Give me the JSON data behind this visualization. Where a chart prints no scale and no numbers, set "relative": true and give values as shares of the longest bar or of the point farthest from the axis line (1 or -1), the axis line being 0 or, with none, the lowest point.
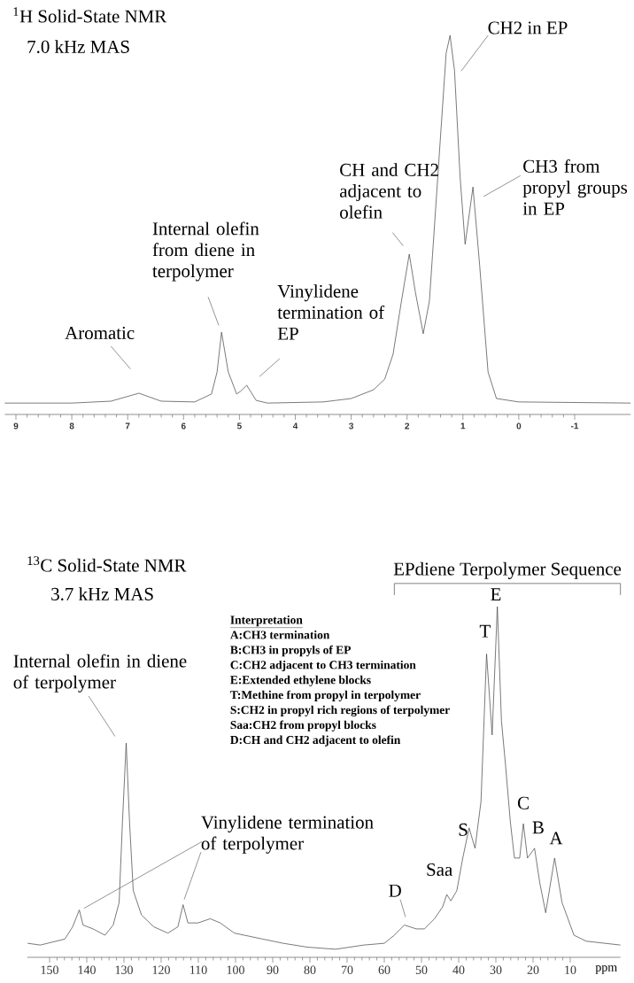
{
  "chart_data": [
    {
      "type": "line",
      "title": "$^{1}$H Solid-State NMR",
      "subtitle": "7.0 kHz MAS",
      "relative": true,
      "tick_labels": "x",
      "color": "#404040",
      "xlim": [
        9.2,
        -2.0
      ],
      "xticks": [
        9,
        8,
        7,
        6,
        5,
        4,
        3,
        2,
        1,
        0,
        -1
      ],
      "x": [
        9.2,
        8,
        7.3,
        6.8,
        6.4,
        5.8,
        5.5,
        5.4,
        5.32,
        5.2,
        5.05,
        4.98,
        4.87,
        4.7,
        4.5,
        3.5,
        3.0,
        2.6,
        2.4,
        2.25,
        2.1,
        1.96,
        1.85,
        1.71,
        1.6,
        1.45,
        1.3,
        1.23,
        1.15,
        1.05,
        0.96,
        0.82,
        0.7,
        0.55,
        0.4,
        0.0,
        -2.0
      ],
      "values": [
        0.03,
        0.03,
        0.035,
        0.056,
        0.035,
        0.033,
        0.054,
        0.112,
        0.217,
        0.112,
        0.054,
        0.061,
        0.077,
        0.037,
        0.03,
        0.033,
        0.042,
        0.065,
        0.093,
        0.159,
        0.299,
        0.423,
        0.322,
        0.213,
        0.299,
        0.626,
        0.953,
        1.0,
        0.907,
        0.626,
        0.449,
        0.6,
        0.393,
        0.112,
        0.042,
        0.033,
        0.03
      ],
      "annotations": [
        {
          "text": "Aromatic",
          "x": 6.8,
          "y": 0.056
        },
        {
          "text": "Internal olefin from diene in terpolymer",
          "x": 5.32,
          "y": 0.217
        },
        {
          "text": "Vinylidene termination of EP",
          "x": 4.87,
          "y": 0.077
        },
        {
          "text": "CH and CH2 adjacent to olefin",
          "x": 1.96,
          "y": 0.423
        },
        {
          "text": "CH2 in EP",
          "x": 1.23,
          "y": 1.0
        },
        {
          "text": "CH3 from propyl groups in EP",
          "x": 0.82,
          "y": 0.6
        }
      ]
    },
    {
      "type": "line",
      "title": "$^{13}$C Solid-State NMR",
      "subtitle": "3.7 kHz MAS",
      "xlabel": "ppm",
      "relative": true,
      "tick_labels": "x",
      "color": "#404040",
      "xlim": [
        156,
        -3.5
      ],
      "xticks": [
        150,
        140,
        130,
        120,
        110,
        100,
        90,
        80,
        70,
        60,
        50,
        40,
        30,
        20,
        10
      ],
      "x": [
        155.9,
        152.5,
        145.9,
        143.8,
        142.0,
        141.0,
        138.3,
        135.1,
        132.9,
        131.3,
        130.4,
        129.4,
        128.5,
        127.5,
        125.3,
        122.0,
        118.2,
        115.5,
        114.1,
        112.8,
        110.1,
        106.8,
        104.1,
        100.3,
        92.7,
        87.2,
        80.7,
        73.1,
        65.5,
        60.0,
        57.3,
        54.6,
        51.4,
        49.2,
        46.5,
        44.3,
        43.2,
        42.1,
        40.5,
        38.9,
        37.2,
        35.6,
        34.0,
        32.5,
        31.0,
        29.6,
        28.5,
        27.4,
        26.1,
        25.0,
        23.6,
        22.6,
        21.5,
        19.6,
        18.2,
        16.6,
        14.2,
        12.2,
        9.0,
        5.7,
        -3.5
      ],
      "values": [
        0.04,
        0.035,
        0.052,
        0.087,
        0.135,
        0.092,
        0.081,
        0.063,
        0.092,
        0.156,
        0.386,
        0.611,
        0.386,
        0.19,
        0.121,
        0.087,
        0.069,
        0.087,
        0.15,
        0.098,
        0.098,
        0.11,
        0.098,
        0.069,
        0.052,
        0.04,
        0.029,
        0.023,
        0.035,
        0.04,
        0.063,
        0.092,
        0.081,
        0.081,
        0.11,
        0.144,
        0.179,
        0.161,
        0.19,
        0.283,
        0.369,
        0.311,
        0.444,
        0.865,
        0.634,
        1.0,
        0.675,
        0.548,
        0.386,
        0.283,
        0.283,
        0.381,
        0.283,
        0.311,
        0.213,
        0.127,
        0.283,
        0.156,
        0.063,
        0.046,
        0.035
      ],
      "annotations": [
        "EPdiene Terpolymer Sequence",
        {
          "text": "Internal olefin in diene of terpolymer",
          "x": 129.4,
          "y": 0.611
        },
        {
          "text": "Vinylidene termination of terpolymer",
          "x": 114.1,
          "y": 0.15
        },
        {
          "text": "D",
          "x": 54.6,
          "y": 0.092
        },
        {
          "text": "Saa",
          "x": 43.2,
          "y": 0.179
        },
        {
          "text": "S",
          "x": 37.2,
          "y": 0.369
        },
        {
          "text": "T",
          "x": 32.5,
          "y": 0.865
        },
        {
          "text": "E",
          "x": 29.6,
          "y": 1.0
        },
        {
          "text": "C",
          "x": 22.6,
          "y": 0.381
        },
        {
          "text": "B",
          "x": 19.6,
          "y": 0.311
        },
        {
          "text": "A",
          "x": 14.2,
          "y": 0.283
        },
        "Interpretation",
        "A:CH3 termination",
        "B:CH3 in propyls of EP",
        "C:CH2 adjacent to CH3 termination",
        "E:Extended ethylene blocks",
        "T:Methine from propyl in terpolymer",
        "S:CH2 in propyl rich regions of terpolymer",
        "Saa:CH2 from propyl blocks",
        "D:CH and CH2 adjacent to olefin"
      ]
    }
  ]
}
